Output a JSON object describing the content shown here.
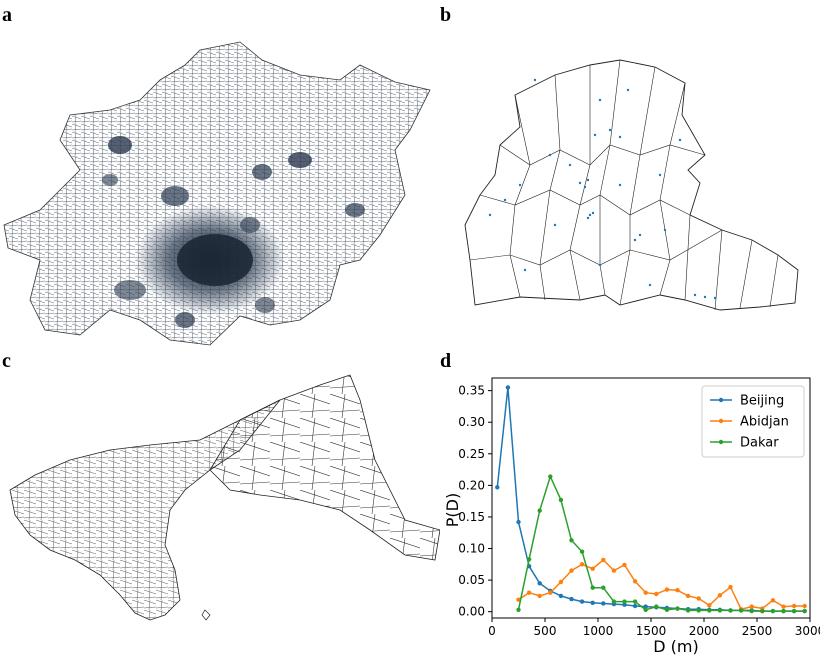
{
  "panels": {
    "a": "a",
    "b": "b",
    "c": "c",
    "d": "d"
  },
  "maps": {
    "a_icon": "voronoi-map-beijing",
    "b_icon": "voronoi-map-abidjan",
    "c_icon": "voronoi-map-dakar",
    "point_color": "#1f77b4",
    "line_color": "#000000"
  },
  "chart_data": {
    "type": "line",
    "xlabel": "D (m)",
    "ylabel": "P(D)",
    "xlim": [
      0,
      3000
    ],
    "ylim": [
      -0.01,
      0.37
    ],
    "xticks": [
      0,
      500,
      1000,
      1500,
      2000,
      2500,
      3000
    ],
    "yticks": [
      0.0,
      0.05,
      0.1,
      0.15,
      0.2,
      0.25,
      0.3,
      0.35
    ],
    "ytick_labels": [
      "0.00",
      "0.05",
      "0.10",
      "0.15",
      "0.20",
      "0.25",
      "0.30",
      "0.35"
    ],
    "grid": false,
    "legend_position": "top-right",
    "series": [
      {
        "name": "Beijing",
        "color": "#1f77b4",
        "x": [
          50,
          150,
          250,
          350,
          450,
          550,
          650,
          750,
          850,
          950,
          1050,
          1150,
          1250,
          1350,
          1450,
          1550,
          1650,
          1750,
          1850,
          1950,
          2050,
          2150,
          2250,
          2350,
          2450,
          2550,
          2650,
          2750,
          2850,
          2950
        ],
        "y": [
          0.197,
          0.355,
          0.142,
          0.072,
          0.045,
          0.033,
          0.025,
          0.02,
          0.016,
          0.014,
          0.013,
          0.012,
          0.011,
          0.009,
          0.008,
          0.007,
          0.006,
          0.005,
          0.004,
          0.004,
          0.003,
          0.003,
          0.002,
          0.002,
          0.002,
          0.001,
          0.001,
          0.001,
          0.001,
          0.001
        ]
      },
      {
        "name": "Abidjan",
        "color": "#ff7f0e",
        "x": [
          250,
          350,
          450,
          550,
          650,
          750,
          850,
          950,
          1050,
          1150,
          1250,
          1350,
          1450,
          1550,
          1650,
          1750,
          1850,
          1950,
          2050,
          2150,
          2250,
          2350,
          2450,
          2550,
          2650,
          2750,
          2850,
          2950
        ],
        "y": [
          0.019,
          0.03,
          0.025,
          0.03,
          0.047,
          0.065,
          0.075,
          0.068,
          0.082,
          0.065,
          0.074,
          0.048,
          0.03,
          0.028,
          0.035,
          0.034,
          0.025,
          0.021,
          0.01,
          0.026,
          0.039,
          0.004,
          0.008,
          0.005,
          0.018,
          0.008,
          0.009,
          0.009
        ]
      },
      {
        "name": "Dakar",
        "color": "#2ca02c",
        "x": [
          250,
          350,
          450,
          550,
          650,
          750,
          850,
          950,
          1050,
          1150,
          1250,
          1350,
          1450,
          1550,
          1650,
          1750,
          1850,
          1950,
          2050,
          2150,
          2250,
          2350,
          2450,
          2550,
          2650,
          2750,
          2850,
          2950
        ],
        "y": [
          0.003,
          0.083,
          0.16,
          0.214,
          0.177,
          0.113,
          0.095,
          0.038,
          0.038,
          0.016,
          0.016,
          0.016,
          0.003,
          0.008,
          0.003,
          0.005,
          0.002,
          0.002,
          0.002,
          0.002,
          0.002,
          0.002,
          0.001,
          0.001,
          0.001,
          0.001,
          0.001,
          0.001
        ]
      }
    ]
  }
}
